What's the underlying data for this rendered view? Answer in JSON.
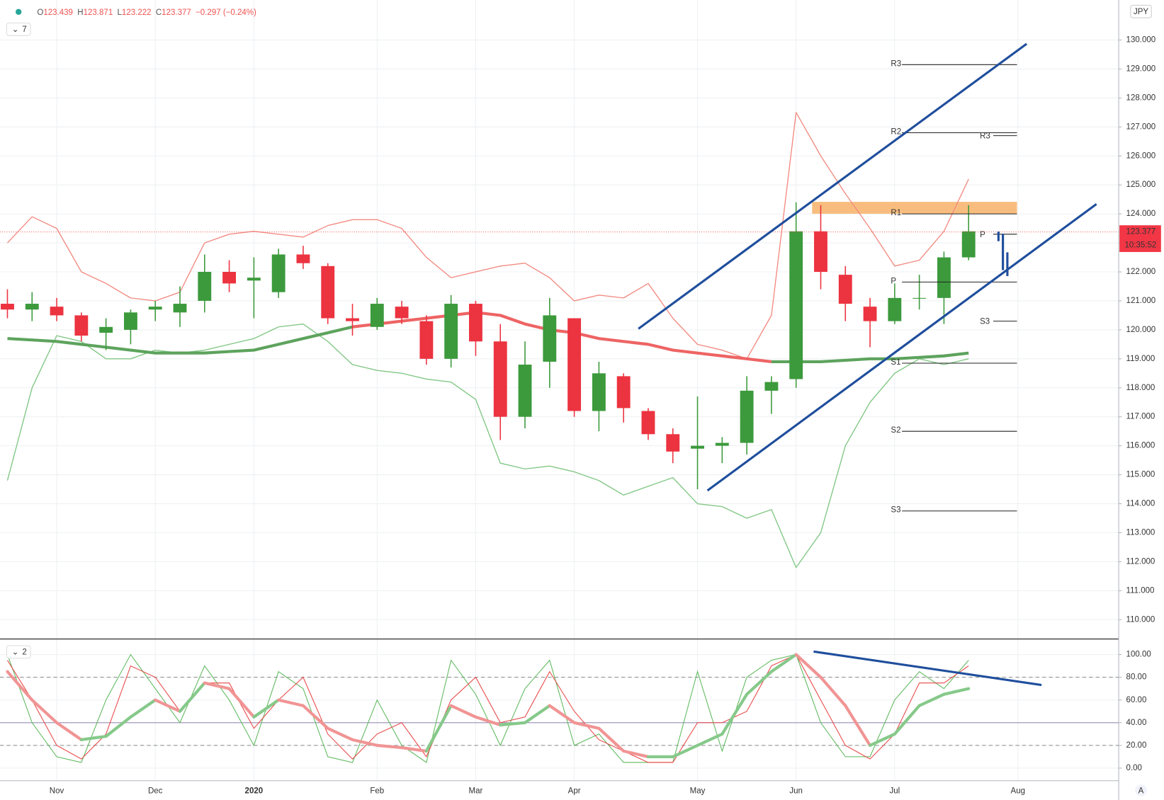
{
  "header": {
    "ohlc": [
      {
        "key": "O",
        "value": "123.439"
      },
      {
        "key": "H",
        "value": "123.871"
      },
      {
        "key": "L",
        "value": "123.222"
      },
      {
        "key": "C",
        "value": "123.377"
      }
    ],
    "change": "−0.297 (−0.24%)",
    "scale_mode": "A"
  },
  "chart_data": [
    {
      "type": "candlestick",
      "indicator_label": "7",
      "currency": "JPY",
      "categories": [
        null,
        null,
        "Nov",
        null,
        null,
        null,
        "Dec",
        null,
        null,
        null,
        "2020",
        null,
        null,
        null,
        null,
        "Feb",
        null,
        null,
        null,
        "Mar",
        null,
        null,
        null,
        "Apr",
        null,
        null,
        null,
        null,
        "May",
        null,
        null,
        null,
        "Jun",
        null,
        null,
        null,
        "Jul",
        null,
        null,
        null,
        null,
        "Aug"
      ],
      "open": [
        120.9,
        120.7,
        120.8,
        120.5,
        119.9,
        120.0,
        120.7,
        120.6,
        121.0,
        122.0,
        121.7,
        121.3,
        122.6,
        122.2,
        120.4,
        120.1,
        120.8,
        120.3,
        119.0,
        120.9,
        119.6,
        117.0,
        118.9,
        120.4,
        117.2,
        118.4,
        117.2,
        116.4,
        115.9,
        116.0,
        116.1,
        117.9,
        118.3,
        123.4,
        121.9,
        120.8,
        120.3,
        121.1,
        121.1,
        122.5,
        null,
        null
      ],
      "high": [
        121.4,
        121.3,
        121.1,
        120.6,
        120.4,
        120.7,
        121.0,
        121.5,
        122.6,
        122.4,
        122.5,
        122.8,
        122.9,
        122.3,
        120.9,
        121.1,
        121.0,
        120.5,
        121.2,
        121.0,
        120.2,
        119.6,
        121.1,
        120.4,
        118.9,
        118.5,
        117.3,
        116.6,
        117.7,
        116.3,
        118.4,
        118.4,
        124.4,
        124.3,
        122.2,
        121.1,
        121.6,
        121.9,
        122.7,
        124.3,
        null,
        null
      ],
      "low": [
        120.4,
        120.3,
        120.3,
        119.6,
        119.3,
        119.5,
        120.3,
        120.1,
        120.6,
        121.3,
        120.4,
        121.1,
        122.1,
        120.2,
        119.8,
        120.0,
        120.2,
        118.8,
        118.7,
        119.1,
        116.2,
        116.6,
        118.0,
        117.0,
        116.5,
        116.8,
        116.2,
        115.4,
        114.5,
        115.4,
        115.7,
        117.1,
        118.0,
        121.4,
        120.3,
        119.4,
        120.2,
        120.7,
        120.2,
        122.4,
        null,
        null
      ],
      "close": [
        120.7,
        120.9,
        120.5,
        119.8,
        120.1,
        120.6,
        120.8,
        120.9,
        122.0,
        121.6,
        121.8,
        122.6,
        122.3,
        120.4,
        120.3,
        120.9,
        120.4,
        119.0,
        120.9,
        119.6,
        117.0,
        118.8,
        120.5,
        117.2,
        118.5,
        117.3,
        116.4,
        115.8,
        116.0,
        116.1,
        117.9,
        118.2,
        123.4,
        122.0,
        120.9,
        120.3,
        121.1,
        121.1,
        122.5,
        123.4,
        null,
        null
      ],
      "up_color": "#3c9a3c",
      "down_color": "#ec3340",
      "series": [
        {
          "color": "#f28b82",
          "width": 1.3,
          "values": [
            123.0,
            123.9,
            123.5,
            122.0,
            121.6,
            121.1,
            121.0,
            121.3,
            123.0,
            123.3,
            123.4,
            123.3,
            123.2,
            123.6,
            123.8,
            123.8,
            123.5,
            122.5,
            121.8,
            122.0,
            122.2,
            122.3,
            121.8,
            121.0,
            121.2,
            121.1,
            121.6,
            120.4,
            119.5,
            119.3,
            119.0,
            120.5,
            127.5,
            126.0,
            124.7,
            123.5,
            122.2,
            122.4,
            123.4,
            125.2,
            null,
            null
          ]
        },
        {
          "color": "#81c784",
          "width": 1.3,
          "values": [
            114.8,
            118.0,
            119.8,
            119.6,
            119.0,
            119.0,
            119.3,
            119.2,
            119.3,
            119.5,
            119.7,
            120.1,
            120.2,
            119.6,
            118.8,
            118.6,
            118.5,
            118.3,
            118.2,
            117.6,
            115.4,
            115.2,
            115.3,
            115.1,
            114.8,
            114.3,
            114.6,
            114.9,
            114.0,
            113.9,
            113.5,
            113.8,
            111.8,
            113.0,
            116.0,
            117.5,
            118.5,
            119.0,
            118.8,
            119.0,
            null,
            null
          ]
        },
        {
          "color": "#5da35d",
          "width": 4,
          "values": [
            119.7,
            119.65,
            119.6,
            119.5,
            119.4,
            119.3,
            119.2,
            119.2,
            119.2,
            119.25,
            119.3,
            119.5,
            119.7,
            119.9,
            120.1,
            null,
            null,
            null,
            null,
            null,
            null,
            null,
            null,
            null,
            null,
            null,
            null,
            null,
            null,
            null,
            null,
            118.9,
            118.9,
            118.9,
            118.95,
            119.0,
            119.0,
            119.05,
            119.1,
            119.2,
            null,
            null
          ]
        },
        {
          "color": "#ee6464",
          "width": 4,
          "values": [
            null,
            null,
            null,
            null,
            null,
            null,
            null,
            null,
            null,
            null,
            null,
            null,
            null,
            null,
            120.1,
            120.2,
            120.3,
            120.4,
            120.5,
            120.6,
            120.5,
            120.2,
            120.0,
            119.9,
            119.7,
            119.6,
            119.5,
            119.3,
            119.2,
            119.1,
            119.0,
            118.9,
            null,
            null,
            null,
            null,
            null,
            null,
            null,
            null,
            null,
            null
          ]
        }
      ],
      "ylim": [
        109.36,
        131.38
      ],
      "yticks": [
        {
          "value": 110,
          "label": "110.000"
        },
        {
          "value": 111,
          "label": "111.000"
        },
        {
          "value": 112,
          "label": "112.000"
        },
        {
          "value": 113,
          "label": "113.000"
        },
        {
          "value": 114,
          "label": "114.000"
        },
        {
          "value": 115,
          "label": "115.000"
        },
        {
          "value": 116,
          "label": "116.000"
        },
        {
          "value": 117,
          "label": "117.000"
        },
        {
          "value": 118,
          "label": "118.000"
        },
        {
          "value": 119,
          "label": "119.000"
        },
        {
          "value": 120,
          "label": "120.000"
        },
        {
          "value": 121,
          "label": "121.000"
        },
        {
          "value": 122,
          "label": "122.000"
        },
        {
          "value": 123,
          "label": "123.000"
        },
        {
          "value": 124,
          "label": "124.000"
        },
        {
          "value": 125,
          "label": "125.000"
        },
        {
          "value": 126,
          "label": "126.000"
        },
        {
          "value": 127,
          "label": "127.000"
        },
        {
          "value": 128,
          "label": "128.000"
        },
        {
          "value": 129,
          "label": "129.000"
        },
        {
          "value": 130,
          "label": "130.000"
        }
      ],
      "last_price": {
        "value": 123.377,
        "label": "123.377"
      },
      "countdown": "10:35:52",
      "pivots": [
        {
          "label": "R3",
          "value": 129.15
        },
        {
          "label": "R2",
          "value": 126.8
        },
        {
          "label": "R1",
          "value": 124.0
        },
        {
          "label": "P",
          "value": 121.65
        },
        {
          "label": "S1",
          "value": 118.85
        },
        {
          "label": "S2",
          "value": 116.5
        },
        {
          "label": "S3",
          "value": 113.75
        }
      ],
      "pivots_right": [
        {
          "label": "R3",
          "value": 126.7
        },
        {
          "label": "P",
          "value": 123.3
        },
        {
          "label": "S3",
          "value": 120.3
        }
      ],
      "grid": true
    },
    {
      "type": "line",
      "indicator_label": "2",
      "series": [
        {
          "color": "#5cb85c",
          "width": 1,
          "values": [
            100,
            40,
            10,
            5,
            60,
            100,
            70,
            40,
            90,
            60,
            20,
            85,
            70,
            10,
            5,
            60,
            20,
            5,
            95,
            65,
            20,
            70,
            95,
            20,
            30,
            5,
            5,
            5,
            85,
            15,
            80,
            95,
            100,
            40,
            10,
            10,
            60,
            85,
            70,
            95,
            null,
            null
          ]
        },
        {
          "color": "#e84545",
          "width": 1,
          "values": [
            95,
            60,
            20,
            8,
            30,
            90,
            80,
            50,
            75,
            75,
            35,
            60,
            80,
            30,
            8,
            30,
            40,
            10,
            60,
            80,
            40,
            45,
            85,
            50,
            25,
            15,
            5,
            5,
            40,
            40,
            50,
            90,
            100,
            60,
            20,
            8,
            30,
            75,
            75,
            90,
            null,
            null
          ]
        },
        {
          "color": "#86c98a",
          "down_color": "#f19494",
          "width": 4,
          "values": [
            85,
            60,
            40,
            25,
            28,
            45,
            60,
            50,
            75,
            70,
            45,
            60,
            55,
            35,
            25,
            20,
            18,
            15,
            55,
            45,
            38,
            40,
            55,
            40,
            35,
            15,
            10,
            10,
            20,
            30,
            65,
            85,
            100,
            80,
            55,
            20,
            30,
            55,
            65,
            70,
            null,
            null
          ]
        }
      ],
      "levels": [
        {
          "value": 80,
          "style": "dashed"
        },
        {
          "value": 40,
          "style": "solid"
        },
        {
          "value": 20,
          "style": "dashed"
        }
      ],
      "ylim": [
        -11.1,
        113.1
      ],
      "yticks": [
        {
          "value": 0,
          "label": "0.00"
        },
        {
          "value": 20,
          "label": "20.00"
        },
        {
          "value": 40,
          "label": "40.00"
        },
        {
          "value": 60,
          "label": "60.00"
        },
        {
          "value": 80,
          "label": "80.00"
        },
        {
          "value": 100,
          "label": "100.00"
        }
      ],
      "grid": true
    }
  ]
}
